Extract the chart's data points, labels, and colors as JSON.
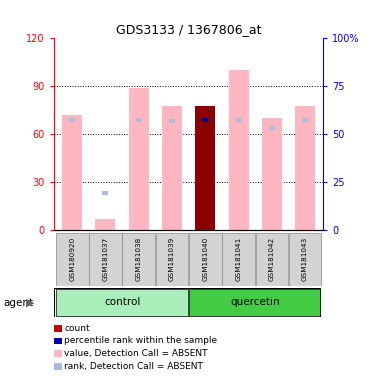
{
  "title": "GDS3133 / 1367806_at",
  "samples": [
    "GSM180920",
    "GSM181037",
    "GSM181038",
    "GSM181039",
    "GSM181040",
    "GSM181041",
    "GSM181042",
    "GSM181043"
  ],
  "value_absent": [
    72,
    7,
    89,
    78,
    null,
    100,
    70,
    78
  ],
  "rank_absent_square_y": [
    null,
    22,
    null,
    null,
    null,
    null,
    null,
    null
  ],
  "count_present": [
    null,
    null,
    null,
    null,
    78,
    null,
    null,
    null
  ],
  "percentile_present": [
    null,
    null,
    null,
    null,
    68,
    null,
    null,
    null
  ],
  "rank_top_y": [
    68,
    null,
    68,
    67,
    null,
    68,
    63,
    68
  ],
  "ylim_left": [
    0,
    120
  ],
  "ylim_right": [
    0,
    100
  ],
  "yticks_left": [
    0,
    30,
    60,
    90,
    120
  ],
  "yticks_right": [
    0,
    25,
    50,
    75,
    100
  ],
  "yticklabels_right": [
    "0",
    "25",
    "50",
    "75",
    "100%"
  ],
  "color_count": "#8B0000",
  "color_percentile": "#000099",
  "color_value_absent": "#FFB6C1",
  "color_rank_absent": "#AABBDD",
  "bar_width": 0.6,
  "control_color": "#AAEEBB",
  "quercetin_color": "#44CC44",
  "legend_items": [
    {
      "label": "count",
      "color": "#CC0000"
    },
    {
      "label": "percentile rank within the sample",
      "color": "#0000AA"
    },
    {
      "label": "value, Detection Call = ABSENT",
      "color": "#FFB6C1"
    },
    {
      "label": "rank, Detection Call = ABSENT",
      "color": "#AABBDD"
    }
  ]
}
